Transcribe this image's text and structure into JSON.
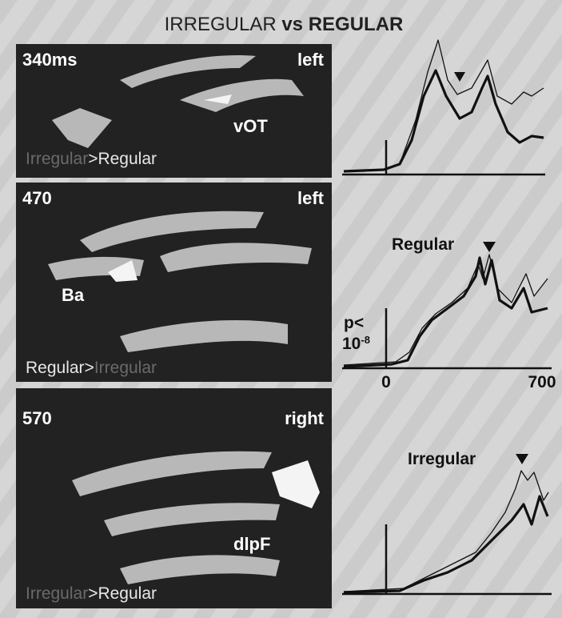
{
  "title": {
    "part1": "IRREGULAR",
    "part2": "vs REGULAR"
  },
  "panels": [
    {
      "time": "340ms",
      "hemisphere": "left",
      "region": "vOT",
      "contrast": [
        "Irregular",
        ">Regular"
      ]
    },
    {
      "time": "470",
      "hemisphere": "left",
      "region": "Ba",
      "contrast": [
        "Regular>",
        "Irregular"
      ]
    },
    {
      "time": "570",
      "hemisphere": "right",
      "region": "dlpF",
      "contrast": [
        "Irregular",
        ">Regular"
      ]
    }
  ],
  "plots": [
    {},
    {
      "label": "Regular",
      "p_label": "p<",
      "p_base": "10",
      "p_exp": "-8",
      "x_start": "0",
      "x_end": "700"
    },
    {
      "label": "Irregular"
    }
  ]
}
